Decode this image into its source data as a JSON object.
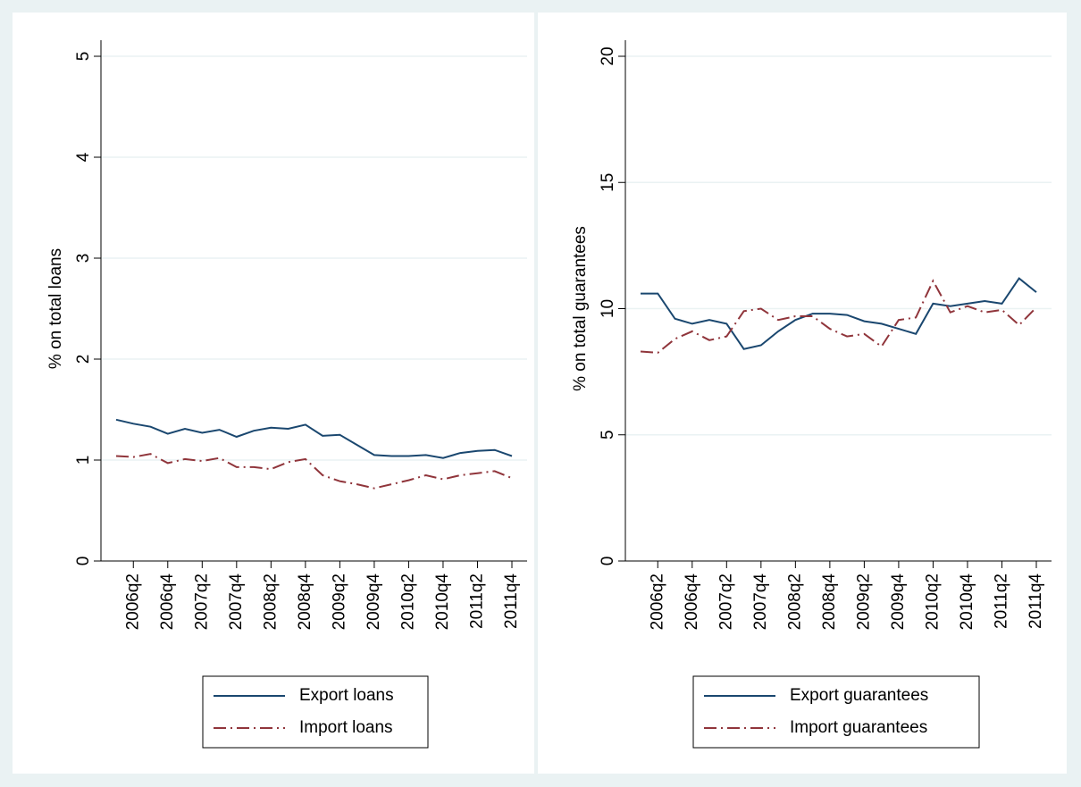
{
  "chart_data": [
    {
      "type": "line",
      "ylabel": "% on total loans",
      "categories": [
        null,
        "2006q2",
        null,
        "2006q4",
        null,
        "2007q2",
        null,
        "2007q4",
        null,
        "2008q2",
        null,
        "2008q4",
        null,
        "2009q2",
        null,
        "2009q4",
        null,
        "2010q2",
        null,
        "2010q4",
        null,
        "2011q2",
        null,
        "2011q4"
      ],
      "series": [
        {
          "name": "Export loans",
          "color": "#1a476f",
          "dash": "solid",
          "values": [
            1.4,
            1.36,
            1.33,
            1.26,
            1.31,
            1.27,
            1.3,
            1.23,
            1.29,
            1.32,
            1.31,
            1.35,
            1.24,
            1.25,
            1.15,
            1.05,
            1.04,
            1.04,
            1.05,
            1.02,
            1.07,
            1.09,
            1.1,
            1.04
          ]
        },
        {
          "name": "Import loans",
          "color": "#90353b",
          "dash": "dashdot",
          "values": [
            1.04,
            1.03,
            1.06,
            0.97,
            1.01,
            0.99,
            1.02,
            0.93,
            0.93,
            0.91,
            0.98,
            1.01,
            0.85,
            0.79,
            0.76,
            0.72,
            0.76,
            0.8,
            0.85,
            0.81,
            0.85,
            0.87,
            0.89,
            0.82
          ]
        }
      ],
      "ylim": [
        0,
        5
      ],
      "yticks": [
        0,
        1,
        2,
        3,
        4,
        5
      ],
      "grid": true
    },
    {
      "type": "line",
      "ylabel": "% on total guarantees",
      "categories": [
        null,
        "2006q2",
        null,
        "2006q4",
        null,
        "2007q2",
        null,
        "2007q4",
        null,
        "2008q2",
        null,
        "2008q4",
        null,
        "2009q2",
        null,
        "2009q4",
        null,
        "2010q2",
        null,
        "2010q4",
        null,
        "2011q2",
        null,
        "2011q4"
      ],
      "series": [
        {
          "name": "Export guarantees",
          "color": "#1a476f",
          "dash": "solid",
          "values": [
            10.6,
            10.6,
            9.6,
            9.4,
            9.55,
            9.4,
            8.4,
            8.55,
            9.1,
            9.55,
            9.8,
            9.8,
            9.75,
            9.5,
            9.4,
            9.2,
            9.0,
            10.2,
            10.1,
            10.2,
            10.3,
            10.2,
            11.2,
            10.65
          ]
        },
        {
          "name": "Import guarantees",
          "color": "#90353b",
          "dash": "dashdot",
          "values": [
            8.3,
            8.25,
            8.8,
            9.1,
            8.75,
            8.9,
            9.9,
            10.0,
            9.55,
            9.7,
            9.7,
            9.2,
            8.9,
            9.0,
            8.5,
            9.55,
            9.65,
            11.1,
            9.85,
            10.1,
            9.85,
            9.95,
            9.35,
            10.05
          ]
        }
      ],
      "ylim": [
        0,
        20
      ],
      "yticks": [
        0,
        5,
        10,
        15,
        20
      ],
      "grid": true
    }
  ]
}
